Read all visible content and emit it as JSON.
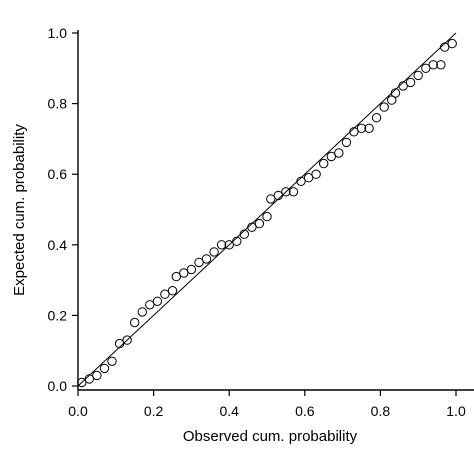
{
  "chart_data": {
    "type": "scatter",
    "title": "",
    "xlabel": "Observed cum. probability",
    "ylabel": "Expected cum. probability",
    "xlim": [
      0.0,
      1.0
    ],
    "ylim": [
      0.0,
      1.0
    ],
    "x_ticks": [
      "0.0",
      "0.2",
      "0.4",
      "0.6",
      "0.8",
      "1.0"
    ],
    "y_ticks": [
      "0.0",
      "0.2",
      "0.4",
      "0.6",
      "0.8",
      "1.0"
    ],
    "grid": false,
    "legend": "none",
    "reference_line": {
      "x": [
        0.0,
        1.0
      ],
      "y": [
        0.0,
        1.0
      ]
    },
    "series": [
      {
        "values": [
          [
            0.01,
            0.01
          ],
          [
            0.03,
            0.02
          ],
          [
            0.05,
            0.03
          ],
          [
            0.07,
            0.05
          ],
          [
            0.09,
            0.07
          ],
          [
            0.11,
            0.12
          ],
          [
            0.13,
            0.13
          ],
          [
            0.15,
            0.18
          ],
          [
            0.17,
            0.21
          ],
          [
            0.19,
            0.23
          ],
          [
            0.21,
            0.24
          ],
          [
            0.23,
            0.26
          ],
          [
            0.25,
            0.27
          ],
          [
            0.26,
            0.31
          ],
          [
            0.28,
            0.32
          ],
          [
            0.3,
            0.33
          ],
          [
            0.32,
            0.35
          ],
          [
            0.34,
            0.36
          ],
          [
            0.36,
            0.38
          ],
          [
            0.38,
            0.4
          ],
          [
            0.4,
            0.4
          ],
          [
            0.42,
            0.41
          ],
          [
            0.44,
            0.43
          ],
          [
            0.46,
            0.45
          ],
          [
            0.48,
            0.46
          ],
          [
            0.5,
            0.48
          ],
          [
            0.51,
            0.53
          ],
          [
            0.53,
            0.54
          ],
          [
            0.55,
            0.55
          ],
          [
            0.57,
            0.55
          ],
          [
            0.59,
            0.58
          ],
          [
            0.61,
            0.59
          ],
          [
            0.63,
            0.6
          ],
          [
            0.65,
            0.63
          ],
          [
            0.67,
            0.65
          ],
          [
            0.69,
            0.66
          ],
          [
            0.71,
            0.69
          ],
          [
            0.73,
            0.72
          ],
          [
            0.75,
            0.73
          ],
          [
            0.77,
            0.73
          ],
          [
            0.79,
            0.76
          ],
          [
            0.81,
            0.79
          ],
          [
            0.83,
            0.81
          ],
          [
            0.84,
            0.83
          ],
          [
            0.86,
            0.85
          ],
          [
            0.88,
            0.86
          ],
          [
            0.9,
            0.88
          ],
          [
            0.92,
            0.9
          ],
          [
            0.94,
            0.91
          ],
          [
            0.96,
            0.91
          ],
          [
            0.97,
            0.96
          ],
          [
            0.99,
            0.97
          ]
        ]
      }
    ]
  }
}
